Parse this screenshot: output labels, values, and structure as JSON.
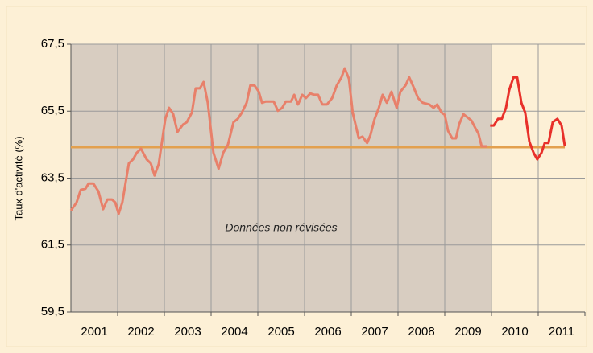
{
  "chart_data": {
    "type": "line",
    "ylabel": "Taux d'activité (%)",
    "annotation": "Données non révisées",
    "shaded_span": [
      2001,
      2010
    ],
    "categories": [
      "2001",
      "2002",
      "2003",
      "2004",
      "2005",
      "2006",
      "2007",
      "2008",
      "2009",
      "2010",
      "2011"
    ],
    "xlim": [
      2001,
      2012
    ],
    "ylim": [
      59.5,
      67.5
    ],
    "yticks": [
      {
        "value": 59.5,
        "label": "59,5"
      },
      {
        "value": 61.5,
        "label": "61,5"
      },
      {
        "value": 63.5,
        "label": "63,5"
      },
      {
        "value": 65.5,
        "label": "65,5"
      },
      {
        "value": 67.5,
        "label": "67,5"
      }
    ],
    "grid": true,
    "reference_line": {
      "value": 64.42,
      "color": "#e3a04e"
    },
    "series": [
      {
        "color": "#e8806a",
        "x": [
          2001.0,
          2001.12,
          2001.21,
          2001.31,
          2001.38,
          2001.48,
          2001.59,
          2001.69,
          2001.78,
          2001.88,
          2001.95,
          2002.02,
          2002.1,
          2002.24,
          2002.33,
          2002.41,
          2002.5,
          2002.62,
          2002.71,
          2002.79,
          2002.88,
          2003.02,
          2003.1,
          2003.19,
          2003.28,
          2003.4,
          2003.48,
          2003.59,
          2003.67,
          2003.76,
          2003.84,
          2003.93,
          2004.05,
          2004.16,
          2004.26,
          2004.36,
          2004.48,
          2004.57,
          2004.66,
          2004.76,
          2004.84,
          2004.93,
          2005.02,
          2005.09,
          2005.17,
          2005.34,
          2005.43,
          2005.52,
          2005.6,
          2005.71,
          2005.78,
          2005.86,
          2005.95,
          2006.03,
          2006.12,
          2006.21,
          2006.29,
          2006.38,
          2006.48,
          2006.59,
          2006.69,
          2006.79,
          2006.86,
          2006.95,
          2007.03,
          2007.16,
          2007.24,
          2007.34,
          2007.41,
          2007.5,
          2007.59,
          2007.67,
          2007.76,
          2007.86,
          2007.97,
          2008.05,
          2008.16,
          2008.24,
          2008.33,
          2008.43,
          2008.53,
          2008.67,
          2008.76,
          2008.84,
          2008.93,
          2009.0,
          2009.07,
          2009.16,
          2009.24,
          2009.31,
          2009.4,
          2009.48,
          2009.57,
          2009.66,
          2009.72,
          2009.79,
          2009.9
        ],
        "values": [
          62.53,
          62.77,
          63.15,
          63.18,
          63.34,
          63.34,
          63.1,
          62.57,
          62.86,
          62.86,
          62.77,
          62.43,
          62.77,
          63.94,
          64.06,
          64.26,
          64.38,
          64.06,
          63.94,
          63.58,
          63.92,
          65.27,
          65.6,
          65.41,
          64.88,
          65.1,
          65.17,
          65.46,
          66.18,
          66.18,
          66.37,
          65.75,
          64.26,
          63.78,
          64.26,
          64.5,
          65.17,
          65.27,
          65.46,
          65.75,
          66.27,
          66.27,
          66.08,
          65.75,
          65.79,
          65.79,
          65.51,
          65.6,
          65.79,
          65.79,
          65.99,
          65.7,
          65.99,
          65.89,
          66.03,
          65.99,
          65.99,
          65.7,
          65.7,
          65.89,
          66.27,
          66.51,
          66.78,
          66.47,
          65.46,
          64.69,
          64.74,
          64.55,
          64.79,
          65.27,
          65.6,
          65.99,
          65.75,
          66.08,
          65.6,
          66.08,
          66.27,
          66.51,
          66.23,
          65.89,
          65.75,
          65.7,
          65.6,
          65.7,
          65.46,
          65.39,
          64.91,
          64.69,
          64.69,
          65.12,
          65.41,
          65.32,
          65.22,
          64.98,
          64.83,
          64.45,
          64.45
        ]
      },
      {
        "color": "#e8302a",
        "x": [
          2009.97,
          2010.05,
          2010.14,
          2010.22,
          2010.31,
          2010.38,
          2010.47,
          2010.55,
          2010.64,
          2010.72,
          2010.81,
          2010.9,
          2010.98,
          2011.07,
          2011.14,
          2011.22,
          2011.31,
          2011.41,
          2011.5,
          2011.57
        ],
        "values": [
          65.07,
          65.07,
          65.27,
          65.27,
          65.6,
          66.13,
          66.51,
          66.51,
          65.75,
          65.46,
          64.59,
          64.26,
          64.06,
          64.26,
          64.55,
          64.55,
          65.17,
          65.27,
          65.07,
          64.45
        ]
      }
    ]
  }
}
